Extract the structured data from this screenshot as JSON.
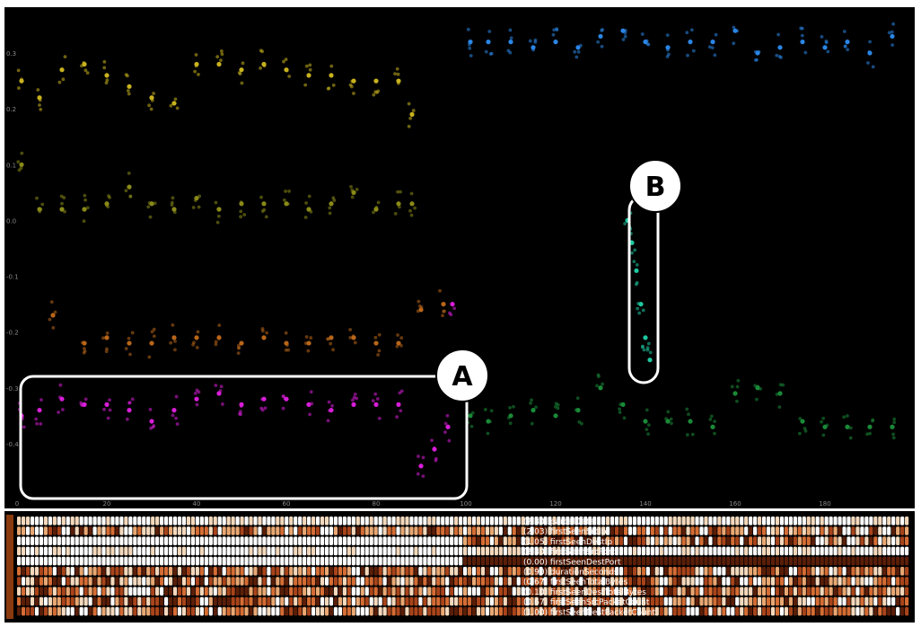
{
  "chart_data": {
    "type": "scatter",
    "x": {
      "ticks": [
        "0",
        "20",
        "40",
        "60",
        "80",
        "100",
        "120",
        "140",
        "160",
        "180"
      ],
      "range": [
        0,
        198
      ]
    },
    "y": {
      "ticks": [
        "0.3",
        "0.2",
        "0.1",
        "0.0",
        "-0.1",
        "-0.2",
        "-0.3",
        "-0.4"
      ],
      "range": [
        -0.5,
        0.35
      ]
    },
    "series": [
      {
        "color": "#c8b21e",
        "points": [
          [
            1,
            0.25
          ],
          [
            5,
            0.22
          ],
          [
            10,
            0.27
          ],
          [
            15,
            0.28
          ],
          [
            20,
            0.26
          ],
          [
            25,
            0.24
          ],
          [
            30,
            0.22
          ],
          [
            35,
            0.21
          ],
          [
            40,
            0.28
          ],
          [
            45,
            0.28
          ],
          [
            50,
            0.27
          ],
          [
            55,
            0.28
          ],
          [
            60,
            0.27
          ],
          [
            65,
            0.26
          ],
          [
            70,
            0.26
          ],
          [
            75,
            0.25
          ],
          [
            80,
            0.25
          ],
          [
            85,
            0.25
          ],
          [
            88,
            0.19
          ]
        ]
      },
      {
        "color": "#8a8a18",
        "points": [
          [
            1,
            0.1
          ],
          [
            5,
            0.02
          ],
          [
            10,
            0.02
          ],
          [
            15,
            0.02
          ],
          [
            20,
            0.03
          ],
          [
            25,
            0.06
          ],
          [
            30,
            0.03
          ],
          [
            35,
            0.02
          ],
          [
            40,
            0.04
          ],
          [
            45,
            0.02
          ],
          [
            50,
            0.03
          ],
          [
            55,
            0.03
          ],
          [
            60,
            0.03
          ],
          [
            65,
            0.02
          ],
          [
            70,
            0.03
          ],
          [
            75,
            0.05
          ],
          [
            80,
            0.02
          ],
          [
            85,
            0.03
          ],
          [
            88,
            0.03
          ]
        ]
      },
      {
        "color": "#b8661a",
        "points": [
          [
            8,
            -0.17
          ],
          [
            15,
            -0.22
          ],
          [
            20,
            -0.21
          ],
          [
            25,
            -0.22
          ],
          [
            30,
            -0.22
          ],
          [
            35,
            -0.21
          ],
          [
            40,
            -0.21
          ],
          [
            45,
            -0.21
          ],
          [
            50,
            -0.22
          ],
          [
            55,
            -0.21
          ],
          [
            60,
            -0.22
          ],
          [
            65,
            -0.22
          ],
          [
            70,
            -0.21
          ],
          [
            75,
            -0.21
          ],
          [
            80,
            -0.22
          ],
          [
            85,
            -0.22
          ],
          [
            90,
            -0.16
          ],
          [
            95,
            -0.15
          ]
        ]
      },
      {
        "color": "#d81ed8",
        "points": [
          [
            1,
            -0.35
          ],
          [
            5,
            -0.34
          ],
          [
            10,
            -0.32
          ],
          [
            15,
            -0.33
          ],
          [
            20,
            -0.33
          ],
          [
            25,
            -0.34
          ],
          [
            30,
            -0.36
          ],
          [
            35,
            -0.34
          ],
          [
            40,
            -0.32
          ],
          [
            45,
            -0.31
          ],
          [
            50,
            -0.33
          ],
          [
            55,
            -0.32
          ],
          [
            60,
            -0.32
          ],
          [
            65,
            -0.33
          ],
          [
            70,
            -0.34
          ],
          [
            75,
            -0.33
          ],
          [
            80,
            -0.33
          ],
          [
            85,
            -0.33
          ],
          [
            90,
            -0.44
          ],
          [
            93,
            -0.41
          ],
          [
            96,
            -0.37
          ],
          [
            97,
            -0.15
          ]
        ]
      },
      {
        "color": "#2a86e6",
        "points": [
          [
            101,
            0.32
          ],
          [
            105,
            0.32
          ],
          [
            110,
            0.32
          ],
          [
            115,
            0.31
          ],
          [
            120,
            0.32
          ],
          [
            125,
            0.31
          ],
          [
            130,
            0.33
          ],
          [
            135,
            0.34
          ],
          [
            140,
            0.32
          ],
          [
            145,
            0.31
          ],
          [
            150,
            0.32
          ],
          [
            155,
            0.32
          ],
          [
            160,
            0.34
          ],
          [
            165,
            0.3
          ],
          [
            170,
            0.31
          ],
          [
            175,
            0.32
          ],
          [
            180,
            0.31
          ],
          [
            185,
            0.32
          ],
          [
            190,
            0.3
          ],
          [
            195,
            0.33
          ]
        ]
      },
      {
        "color": "#1a8a38",
        "points": [
          [
            101,
            -0.35
          ],
          [
            105,
            -0.36
          ],
          [
            110,
            -0.35
          ],
          [
            115,
            -0.34
          ],
          [
            120,
            -0.35
          ],
          [
            125,
            -0.34
          ],
          [
            130,
            -0.3
          ],
          [
            135,
            -0.33
          ],
          [
            140,
            -0.36
          ],
          [
            145,
            -0.36
          ],
          [
            150,
            -0.36
          ],
          [
            155,
            -0.37
          ],
          [
            160,
            -0.31
          ],
          [
            165,
            -0.3
          ],
          [
            170,
            -0.31
          ],
          [
            175,
            -0.36
          ],
          [
            180,
            -0.37
          ],
          [
            185,
            -0.37
          ],
          [
            190,
            -0.37
          ],
          [
            195,
            -0.37
          ]
        ]
      },
      {
        "color": "#1ec8a0",
        "points": [
          [
            136,
            0.0
          ],
          [
            137,
            -0.04
          ],
          [
            138,
            -0.09
          ],
          [
            139,
            -0.15
          ],
          [
            140,
            -0.21
          ],
          [
            141,
            -0.25
          ]
        ]
      }
    ],
    "callouts": [
      "A",
      "B"
    ],
    "heatmap": {
      "rows": [
        "(2.30) parcelDate",
        "(2.03) firstSeenSrcIp",
        "(1.05) firstSeenDestIp",
        "(2.30) firstSeenSrcPort",
        "(0.00) firstSeenDestPort",
        "(0.90) durationSeconds",
        "(0.67) firstSeenTotalBytes",
        "(0.10) firstSeenDestTotalBytes",
        "(0.67) firstSeenSrcPacketCount",
        "(1.00) firstSeenDestPacketCount"
      ],
      "columns": 200
    }
  }
}
